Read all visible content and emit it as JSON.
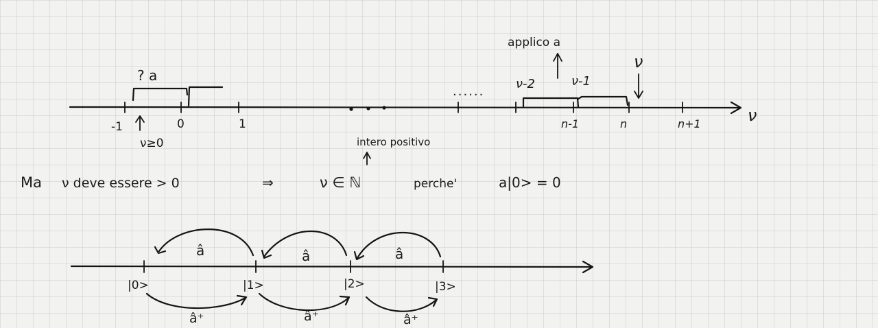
{
  "top_axis": {
    "axis_symbol": "ν",
    "tick_labels": {
      "minus_one": "-1",
      "zero": "0",
      "one": "1",
      "n_minus_1": "n-1",
      "n": "n",
      "n_plus_1": "n+1"
    },
    "question_label": "? a",
    "nu_ge_zero": "ν≥0",
    "dots": "......",
    "nu_minus_2": "ν-2",
    "nu_minus_1": "ν-1",
    "apply_label": "applico a",
    "nu_label": "ν",
    "integer_label": "intero positivo"
  },
  "statement": {
    "ma": "Ma",
    "rest": "ν deve essere > 0",
    "implies": "⇒",
    "conclusion": "ν ∈ ℕ",
    "because": "perche'",
    "reason": "a|0> = 0"
  },
  "ket_axis": {
    "kets": [
      "|0>",
      "|1>",
      "|2>",
      "|3>"
    ],
    "annihilation_label": "â",
    "creation_label": "â⁺"
  }
}
